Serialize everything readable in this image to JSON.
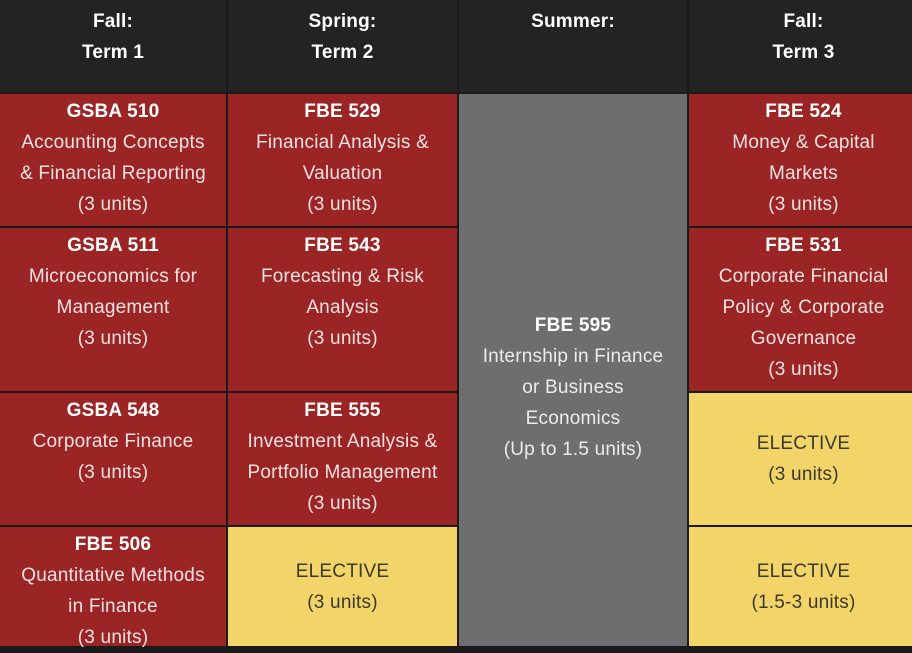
{
  "headers": [
    {
      "line1": "Fall:",
      "line2": "Term 1"
    },
    {
      "line1": "Spring:",
      "line2": "Term 2"
    },
    {
      "line1": "Summer:",
      "line2": ""
    },
    {
      "line1": "Fall:",
      "line2": "Term 3"
    }
  ],
  "term1": [
    {
      "code": "GSBA 510",
      "title1": "Accounting Concepts",
      "title2": "& Financial Reporting",
      "title3": "",
      "units": "(3 units)"
    },
    {
      "code": "GSBA 511",
      "title1": "Microeconomics for",
      "title2": "Management",
      "title3": "",
      "units": "(3 units)"
    },
    {
      "code": "GSBA 548",
      "title1": "Corporate Finance",
      "title2": "",
      "title3": "",
      "units": "(3 units)"
    },
    {
      "code": "FBE 506",
      "title1": "Quantitative Methods",
      "title2": "in Finance",
      "title3": "",
      "units": "(3 units)"
    }
  ],
  "term2": [
    {
      "code": "FBE 529",
      "title1": "Financial Analysis &",
      "title2": "Valuation",
      "units": "(3 units)"
    },
    {
      "code": "FBE 543",
      "title1": "Forecasting & Risk",
      "title2": "Analysis",
      "units": "(3 units)"
    },
    {
      "code": "FBE 555",
      "title1": "Investment Analysis &",
      "title2": "Portfolio Management",
      "units": "(3 units)"
    },
    {
      "code": "ELECTIVE",
      "units": "(3 units)"
    }
  ],
  "summer": {
    "code": "FBE 595",
    "line1": "Internship in Finance",
    "line2": "or Business",
    "line3": "Economics",
    "units": "(Up to 1.5 units)"
  },
  "term3": [
    {
      "code": "FBE 524",
      "title1": "Money & Capital",
      "title2": "Markets",
      "units": "(3 units)"
    },
    {
      "code": "FBE 531",
      "title1": "Corporate Financial",
      "title2": "Policy & Corporate",
      "title3": "Governance",
      "units": "(3 units)"
    },
    {
      "code": "ELECTIVE",
      "units": "(3 units)"
    },
    {
      "code": "ELECTIVE",
      "units": "(1.5-3 units)"
    }
  ],
  "colors": {
    "core": "#9b2424",
    "elective": "#f2d469",
    "summer": "#6e6e70",
    "header": "#232323"
  }
}
